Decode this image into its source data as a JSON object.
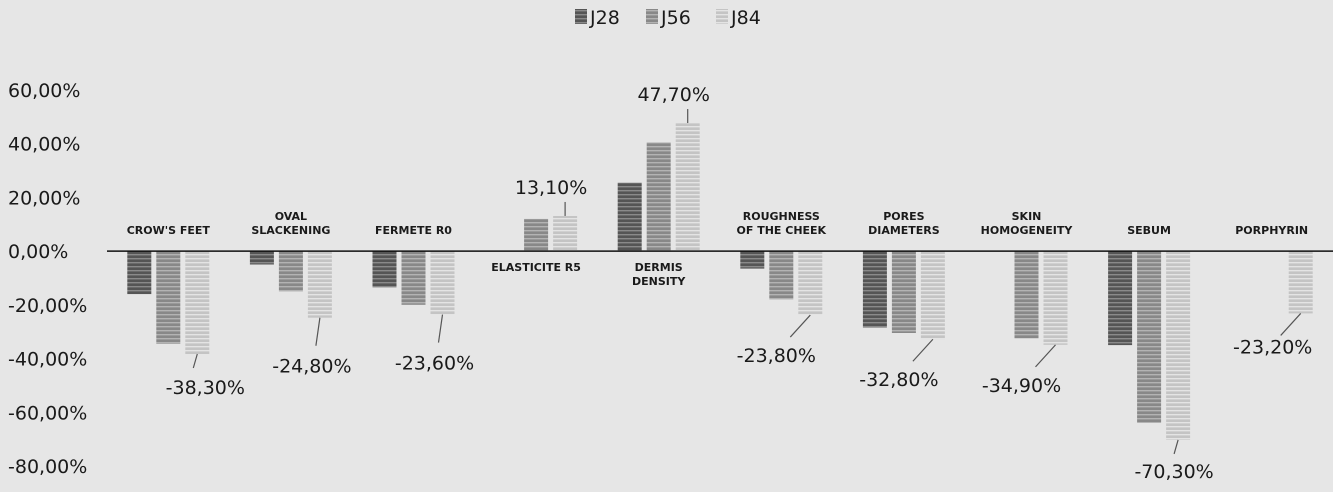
{
  "chart_data": {
    "type": "bar",
    "legend_position": "top-center",
    "gridlines": false,
    "ylim": [
      -80,
      60
    ],
    "yticks": [
      "60,00%",
      "40,00%",
      "20,00%",
      "0,00%",
      "-20,00%",
      "-40,00%",
      "-60,00%",
      "-80,00%"
    ],
    "categories": [
      {
        "lines": [
          "CROW'S FEET"
        ],
        "label_side": "above"
      },
      {
        "lines": [
          "OVAL",
          "SLACKENING"
        ],
        "label_side": "above"
      },
      {
        "lines": [
          "FERMETE R0"
        ],
        "label_side": "above"
      },
      {
        "lines": [
          "ELASTICITE  R5"
        ],
        "label_side": "below"
      },
      {
        "lines": [
          "DERMIS",
          "DENSITY"
        ],
        "label_side": "below"
      },
      {
        "lines": [
          "ROUGHNESS",
          "OF THE CHEEK"
        ],
        "label_side": "above"
      },
      {
        "lines": [
          "PORES",
          "DIAMETERS"
        ],
        "label_side": "above"
      },
      {
        "lines": [
          "SKIN",
          "HOMOGENEITY"
        ],
        "label_side": "above"
      },
      {
        "lines": [
          "SEBUM"
        ],
        "label_side": "above"
      },
      {
        "lines": [
          "PORPHYRIN"
        ],
        "label_side": "above"
      }
    ],
    "series": [
      {
        "name": "J28",
        "color": "#555555",
        "stripe": "#8a8a8a",
        "values": [
          -16,
          -5,
          -13.5,
          null,
          25.5,
          -6.5,
          -28.5,
          null,
          -35,
          null
        ]
      },
      {
        "name": "J56",
        "color": "#888888",
        "stripe": "#b3b3b3",
        "values": [
          -34.5,
          -15,
          -20,
          12,
          40.5,
          -18,
          -30.5,
          -32.5,
          -64,
          null
        ]
      },
      {
        "name": "J84",
        "color": "#c4c4c4",
        "stripe": "#e4e4e4",
        "values": [
          -38.3,
          -24.8,
          -23.6,
          13.1,
          47.7,
          -23.8,
          -32.8,
          -34.9,
          -70.3,
          -23.2
        ]
      }
    ],
    "data_labels": [
      {
        "category": 0,
        "text": "-38,30%"
      },
      {
        "category": 1,
        "text": "-24,80%"
      },
      {
        "category": 2,
        "text": "-23,60%"
      },
      {
        "category": 3,
        "text": "13,10%"
      },
      {
        "category": 4,
        "text": "47,70%"
      },
      {
        "category": 5,
        "text": "-23,80%"
      },
      {
        "category": 6,
        "text": "-32,80%"
      },
      {
        "category": 7,
        "text": "-34,90%"
      },
      {
        "category": 8,
        "text": "-70,30%"
      },
      {
        "category": 9,
        "text": "-23,20%"
      }
    ]
  }
}
